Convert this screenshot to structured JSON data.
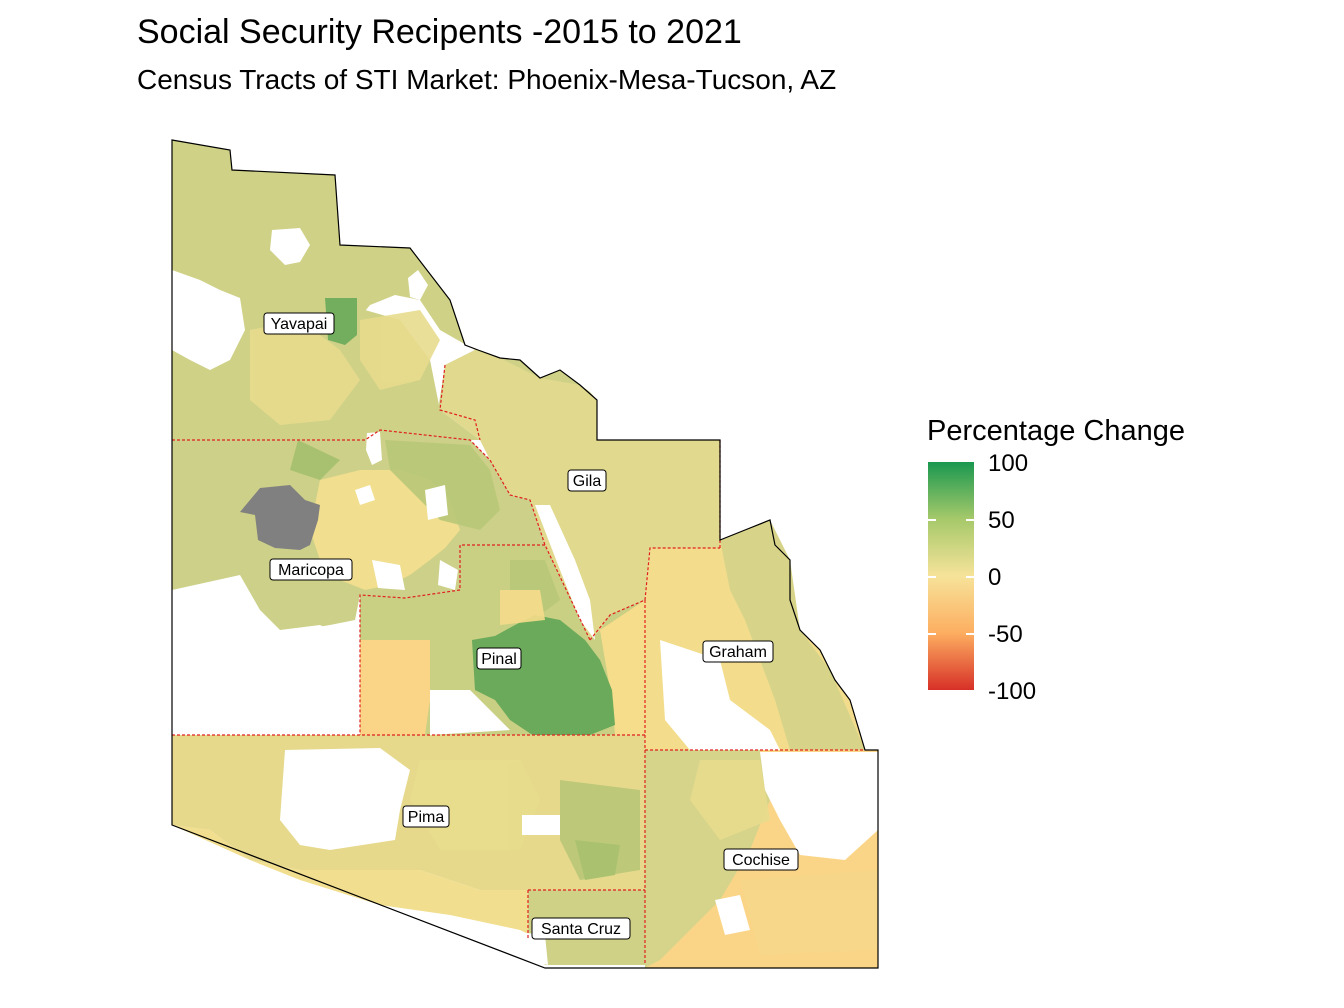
{
  "title": "Social Security Recipents -2015 to 2021",
  "subtitle": "Census Tracts of STI Market: Phoenix-Mesa-Tucson, AZ",
  "legend": {
    "title": "Percentage Change",
    "ticks": [
      "100",
      "50",
      "0",
      "-50",
      "-100"
    ],
    "colors": [
      "#1a9850",
      "#a6c96a",
      "#f6e39a",
      "#fdae61",
      "#d73027"
    ]
  },
  "counties": {
    "yavapai": "Yavapai",
    "gila": "Gila",
    "maricopa": "Maricopa",
    "pinal": "Pinal",
    "graham": "Graham",
    "pima": "Pima",
    "cochise": "Cochise",
    "santa_cruz": "Santa Cruz"
  },
  "colors": {
    "high_growth": "#6aaa5a",
    "moderate_growth": "#cfd187",
    "low_growth": "#f1de8e",
    "decline": "#fbd587",
    "no_data": "#808080",
    "county_border": "#e02020"
  }
}
